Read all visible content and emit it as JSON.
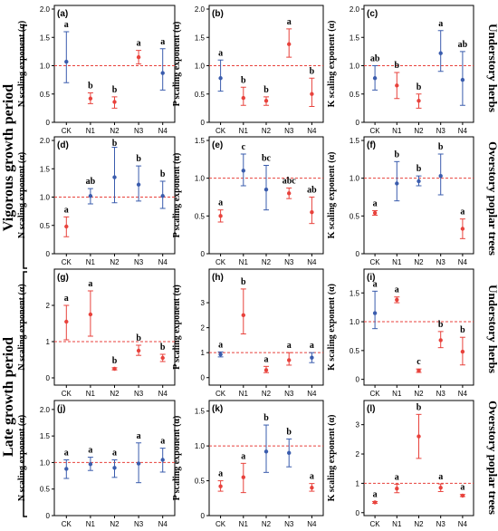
{
  "row_groups": [
    "Vigorous growth period",
    "Late growth period"
  ],
  "side_labels": [
    "Understory herbs",
    "Overstory poplar trees",
    "Understory herbs",
    "Overstory poplar trees"
  ],
  "colors": {
    "red": "#e8423c",
    "blue": "#3a5cad",
    "reference": "#e8423c"
  },
  "chart_data": [
    {
      "panel": "(a)",
      "type": "scatter",
      "ylabel": "N scaling exponent (α)",
      "categories": [
        "CK",
        "N1",
        "N2",
        "N3",
        "N4"
      ],
      "yticks": [
        0,
        0.5,
        1.0,
        1.5,
        2.0
      ],
      "yticklabels": [
        "0",
        "0.5",
        "1.0",
        "1.5",
        "2.0"
      ],
      "ylim": [
        0,
        2.0
      ],
      "reference_y": 1.0,
      "mean": [
        1.07,
        0.42,
        0.36,
        1.15,
        0.87
      ],
      "lower": [
        0.7,
        0.33,
        0.25,
        1.03,
        0.57
      ],
      "upper": [
        1.6,
        0.52,
        0.45,
        1.27,
        1.3
      ],
      "sig": [
        "a",
        "b",
        "b",
        "a",
        "a"
      ],
      "color": [
        "blue",
        "red",
        "red",
        "red",
        "blue"
      ]
    },
    {
      "panel": "(b)",
      "type": "scatter",
      "ylabel": "P scaling exponent (α)",
      "categories": [
        "CK",
        "N1",
        "N2",
        "N3",
        "N4"
      ],
      "yticks": [
        0,
        0.5,
        1.0,
        1.5,
        2.0
      ],
      "yticklabels": [
        "0",
        "0.5",
        "1.0",
        "1.5",
        "2.0"
      ],
      "ylim": [
        0,
        2.0
      ],
      "reference_y": 1.0,
      "mean": [
        0.78,
        0.43,
        0.38,
        1.38,
        0.5
      ],
      "lower": [
        0.55,
        0.3,
        0.3,
        1.15,
        0.28
      ],
      "upper": [
        1.1,
        0.62,
        0.45,
        1.65,
        0.78
      ],
      "sig": [
        "a",
        "b",
        "b",
        "a",
        "b"
      ],
      "color": [
        "blue",
        "red",
        "red",
        "red",
        "red"
      ]
    },
    {
      "panel": "(c)",
      "type": "scatter",
      "ylabel": "K scaling exponent (α)",
      "categories": [
        "CK",
        "N1",
        "N2",
        "N3",
        "N4"
      ],
      "yticks": [
        0,
        0.5,
        1.0,
        1.5,
        2.0
      ],
      "yticklabels": [
        "0",
        "0.5",
        "1.0",
        "1.5",
        "2.0"
      ],
      "ylim": [
        0,
        2.0
      ],
      "reference_y": 1.0,
      "mean": [
        0.78,
        0.65,
        0.38,
        1.22,
        0.75
      ],
      "lower": [
        0.57,
        0.42,
        0.25,
        0.9,
        0.3
      ],
      "upper": [
        1.0,
        0.88,
        0.5,
        1.62,
        1.25
      ],
      "sig": [
        "ab",
        "b",
        "b",
        "a",
        "ab"
      ],
      "color": [
        "blue",
        "red",
        "red",
        "blue",
        "blue"
      ]
    },
    {
      "panel": "(d)",
      "type": "scatter",
      "ylabel": "N scaling exponent (α)",
      "categories": [
        "CK",
        "N1",
        "N2",
        "N3",
        "N4"
      ],
      "yticks": [
        0,
        0.5,
        1.0,
        1.5,
        2.0
      ],
      "yticklabels": [
        "0",
        "0.5",
        "1.0",
        "1.5",
        "2.0"
      ],
      "ylim": [
        0,
        2.0
      ],
      "reference_y": 1.0,
      "mean": [
        0.48,
        1.02,
        1.35,
        1.22,
        1.02
      ],
      "lower": [
        0.3,
        0.88,
        0.9,
        0.93,
        0.8
      ],
      "upper": [
        0.65,
        1.15,
        1.88,
        1.55,
        1.28
      ],
      "sig": [
        "a",
        "ab",
        "b",
        "b",
        "b"
      ],
      "color": [
        "red",
        "blue",
        "blue",
        "blue",
        "blue"
      ]
    },
    {
      "panel": "(e)",
      "type": "scatter",
      "ylabel": "P scaling exponent (α)",
      "categories": [
        "CK",
        "N1",
        "N2",
        "N3",
        "N4"
      ],
      "yticks": [
        0,
        0.5,
        1.0,
        1.5
      ],
      "yticklabels": [
        "0",
        "0.5",
        "1.0",
        "1.5"
      ],
      "ylim": [
        0,
        1.5
      ],
      "reference_y": 1.0,
      "mean": [
        0.5,
        1.1,
        0.85,
        0.8,
        0.55
      ],
      "lower": [
        0.42,
        0.9,
        0.58,
        0.73,
        0.4
      ],
      "upper": [
        0.58,
        1.32,
        1.17,
        0.87,
        0.75
      ],
      "sig": [
        "a",
        "c",
        "bc",
        "abc",
        "ab"
      ],
      "color": [
        "red",
        "blue",
        "blue",
        "red",
        "red"
      ]
    },
    {
      "panel": "(f)",
      "type": "scatter",
      "ylabel": "K scaling exponent (α)",
      "categories": [
        "CK",
        "N1",
        "N2",
        "N3",
        "N4"
      ],
      "yticks": [
        0,
        0.5,
        1.0,
        1.5
      ],
      "yticklabels": [
        "0",
        "0.5",
        "1.0",
        "1.5"
      ],
      "ylim": [
        0,
        1.5
      ],
      "reference_y": 1.0,
      "mean": [
        0.54,
        0.93,
        0.96,
        1.03,
        0.33
      ],
      "lower": [
        0.51,
        0.7,
        0.9,
        0.78,
        0.2
      ],
      "upper": [
        0.57,
        1.22,
        1.03,
        1.32,
        0.46
      ],
      "sig": [
        "a",
        "b",
        "b",
        "b",
        "a"
      ],
      "color": [
        "red",
        "blue",
        "blue",
        "blue",
        "red"
      ]
    },
    {
      "panel": "(g)",
      "type": "scatter",
      "ylabel": "N scaling exponent (α)",
      "categories": [
        "CK",
        "N1",
        "N2",
        "N3",
        "N4"
      ],
      "yticks": [
        0,
        1,
        2
      ],
      "yticklabels": [
        "0",
        "1",
        "2"
      ],
      "ylim": [
        -0.2,
        2.9
      ],
      "reference_y": 1.0,
      "mean": [
        1.55,
        1.75,
        0.25,
        0.75,
        0.55
      ],
      "lower": [
        1.05,
        1.15,
        0.22,
        0.62,
        0.45
      ],
      "upper": [
        2.0,
        2.4,
        0.28,
        0.9,
        0.65
      ],
      "sig": [
        "a",
        "a",
        "b",
        "b",
        "b"
      ],
      "color": [
        "red",
        "red",
        "red",
        "red",
        "red"
      ]
    },
    {
      "panel": "(h)",
      "type": "scatter",
      "ylabel": "P scaling exponent (α)",
      "categories": [
        "CK",
        "N1",
        "N2",
        "N3",
        "N4"
      ],
      "yticks": [
        0,
        1,
        2,
        3
      ],
      "yticklabels": [
        "0",
        "1",
        "2",
        "3"
      ],
      "ylim": [
        -0.3,
        4.2
      ],
      "reference_y": 1.0,
      "mean": [
        0.93,
        2.5,
        0.3,
        0.7,
        0.8
      ],
      "lower": [
        0.83,
        1.75,
        0.2,
        0.5,
        0.6
      ],
      "upper": [
        1.03,
        3.55,
        0.45,
        1.0,
        1.0
      ],
      "sig": [
        "a",
        "b",
        "a",
        "a",
        "a"
      ],
      "color": [
        "blue",
        "red",
        "red",
        "red",
        "blue"
      ]
    },
    {
      "panel": "(i)",
      "type": "scatter",
      "ylabel": "K scaling exponent (α)",
      "categories": [
        "CK",
        "N1",
        "N2",
        "N3",
        "N4"
      ],
      "yticks": [
        0,
        0.5,
        1.0,
        1.5
      ],
      "yticklabels": [
        "0",
        "0.5",
        "1.0",
        "1.5"
      ],
      "ylim": [
        -0.1,
        1.85
      ],
      "reference_y": 1.0,
      "mean": [
        1.15,
        1.38,
        0.15,
        0.68,
        0.48
      ],
      "lower": [
        0.88,
        1.33,
        0.12,
        0.55,
        0.25
      ],
      "upper": [
        1.53,
        1.43,
        0.18,
        0.83,
        0.73
      ],
      "sig": [
        "a",
        "a",
        "c",
        "b",
        "b"
      ],
      "color": [
        "blue",
        "red",
        "red",
        "red",
        "red"
      ]
    },
    {
      "panel": "(j)",
      "type": "scatter",
      "ylabel": "N scaling exponent (α)",
      "categories": [
        "CK",
        "N1",
        "N2",
        "N3",
        "N4"
      ],
      "yticks": [
        0,
        0.5,
        1.0,
        1.5,
        2.0
      ],
      "yticklabels": [
        "0",
        "0.5",
        "1.0",
        "1.5",
        "2.0"
      ],
      "ylim": [
        0,
        2.1
      ],
      "reference_y": 1.0,
      "mean": [
        0.88,
        0.97,
        0.9,
        0.98,
        1.05
      ],
      "lower": [
        0.7,
        0.85,
        0.72,
        0.62,
        0.82
      ],
      "upper": [
        1.05,
        1.1,
        1.05,
        1.37,
        1.27
      ],
      "sig": [
        "a",
        "a",
        "a",
        "a",
        "a"
      ],
      "color": [
        "blue",
        "blue",
        "blue",
        "blue",
        "blue"
      ]
    },
    {
      "panel": "(k)",
      "type": "scatter",
      "ylabel": "P scaling exponent (α)",
      "categories": [
        "CK",
        "N1",
        "N2",
        "N3",
        "N4"
      ],
      "yticks": [
        0,
        0.5,
        1.0,
        1.5
      ],
      "yticklabels": [
        "0",
        "0.5",
        "1.0",
        "1.5"
      ],
      "ylim": [
        0,
        1.6
      ],
      "reference_y": 1.0,
      "mean": [
        0.42,
        0.55,
        0.92,
        0.9,
        0.4
      ],
      "lower": [
        0.35,
        0.33,
        0.62,
        0.7,
        0.35
      ],
      "upper": [
        0.5,
        0.75,
        1.3,
        1.1,
        0.46
      ],
      "sig": [
        "a",
        "a",
        "b",
        "b",
        "a"
      ],
      "color": [
        "red",
        "red",
        "blue",
        "blue",
        "red"
      ]
    },
    {
      "panel": "(l)",
      "type": "scatter",
      "ylabel": "K scaling exponent (α)",
      "categories": [
        "CK",
        "N1",
        "N2",
        "N3",
        "N4"
      ],
      "yticks": [
        0,
        1,
        2,
        3
      ],
      "yticklabels": [
        "0",
        "1",
        "2",
        "3"
      ],
      "ylim": [
        -0.1,
        3.7
      ],
      "reference_y": 1.0,
      "mean": [
        0.35,
        0.82,
        2.6,
        0.85,
        0.58
      ],
      "lower": [
        0.32,
        0.68,
        1.85,
        0.72,
        0.55
      ],
      "upper": [
        0.38,
        0.97,
        3.35,
        0.98,
        0.62
      ],
      "sig": [
        "a",
        "a",
        "b",
        "a",
        "a"
      ],
      "color": [
        "red",
        "red",
        "red",
        "red",
        "red"
      ]
    }
  ]
}
